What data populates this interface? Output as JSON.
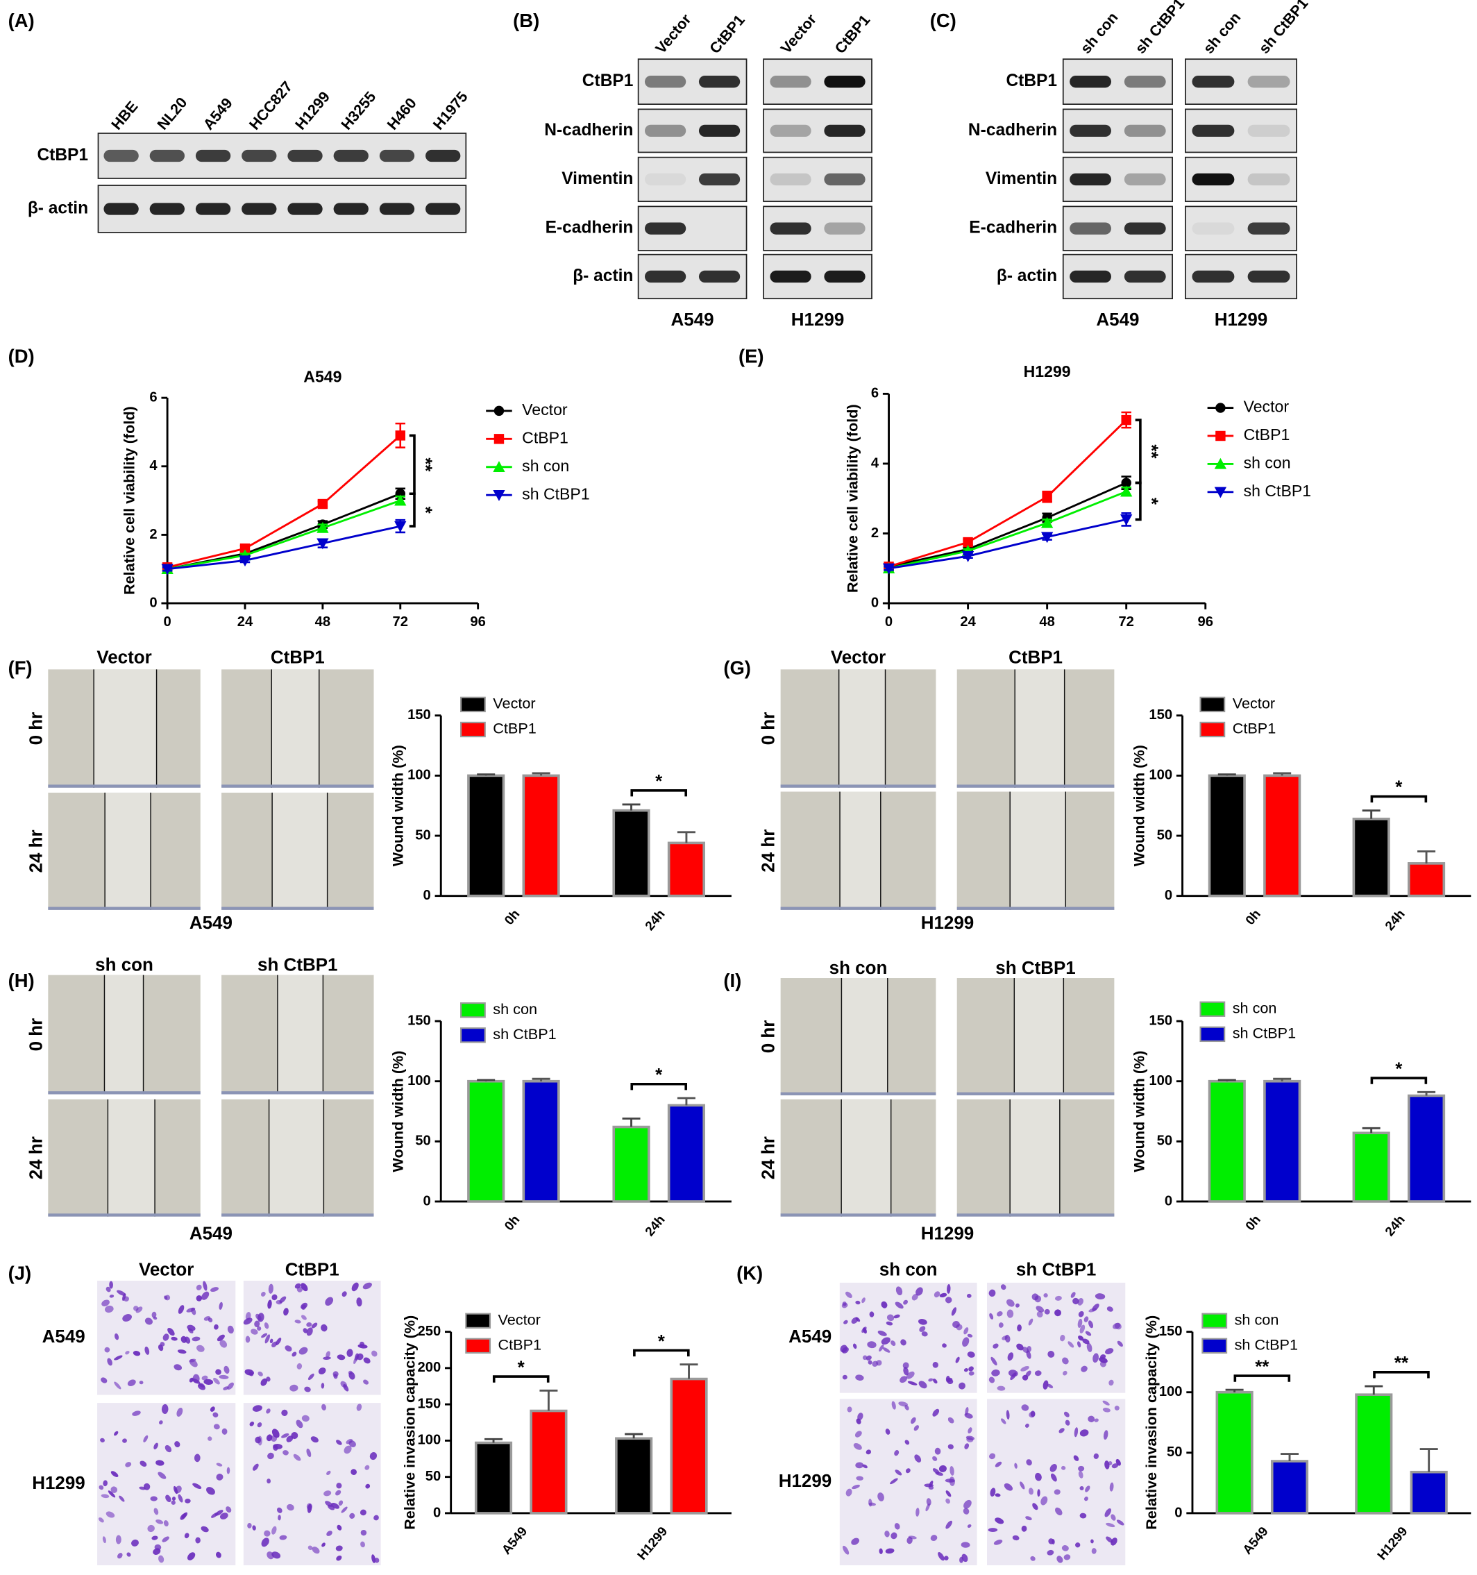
{
  "panel_labels": [
    "(A)",
    "(B)",
    "(C)",
    "(D)",
    "(E)",
    "(F)",
    "(G)",
    "(H)",
    "(I)",
    "(J)",
    "(K)"
  ],
  "blots": [
    {
      "lanes": [
        "HBE",
        "NL20",
        "A549",
        "HCC827",
        "H1299",
        "H3255",
        "H460",
        "H1975"
      ],
      "rows": [
        "CtBP1",
        "β- actin"
      ]
    },
    {
      "lanes": [
        "Vector",
        "CtBP1"
      ],
      "rows": [
        "CtBP1",
        "N-cadherin",
        "Vimentin",
        "E-cadherin",
        "β- actin"
      ],
      "cell_lines": [
        "A549",
        "H1299"
      ]
    },
    {
      "lanes": [
        "sh con",
        "sh CtBP1"
      ],
      "rows": [
        "CtBP1",
        "N-cadherin",
        "Vimentin",
        "E-cadherin",
        "β- actin"
      ],
      "cell_lines": [
        "A549",
        "H1299"
      ]
    }
  ],
  "micrographs": [
    {
      "columns": [
        "Vector",
        "CtBP1"
      ],
      "rows": [
        "0 hr",
        "24 hr"
      ],
      "cell_line": "A549"
    },
    {
      "columns": [
        "Vector",
        "CtBP1"
      ],
      "rows": [
        "0 hr",
        "24 hr"
      ],
      "cell_line": "H1299"
    },
    {
      "columns": [
        "sh con",
        "sh CtBP1"
      ],
      "rows": [
        "0 hr",
        "24 hr"
      ],
      "cell_line": "A549"
    },
    {
      "columns": [
        "sh con",
        "sh CtBP1"
      ],
      "rows": [
        "0 hr",
        "24 hr"
      ],
      "cell_line": "H1299"
    },
    {
      "columns": [
        "Vector",
        "CtBP1"
      ],
      "rows": [
        "A549",
        "H1299"
      ]
    },
    {
      "columns": [
        "sh con",
        "sh CtBP1"
      ],
      "rows": [
        "A549",
        "H1299"
      ]
    }
  ],
  "chart_data": [
    {
      "type": "line",
      "title": "A549",
      "ylabel": "Relative cell viability (fold)",
      "x": [
        0,
        24,
        48,
        72
      ],
      "xlim": [
        0,
        96
      ],
      "xticks": [
        0,
        24,
        48,
        72,
        96
      ],
      "ylim": [
        0,
        6
      ],
      "yticks": [
        0,
        2,
        4,
        6
      ],
      "series": [
        {
          "name": "Vector",
          "color": "#000000",
          "marker": "circle",
          "values": [
            1,
            1.45,
            2.3,
            3.2
          ],
          "errors": [
            0.05,
            0.05,
            0.1,
            0.15
          ]
        },
        {
          "name": "CtBP1",
          "color": "#ff0000",
          "marker": "square",
          "values": [
            1.05,
            1.6,
            2.9,
            4.9
          ],
          "errors": [
            0.05,
            0.08,
            0.08,
            0.35
          ]
        },
        {
          "name": "sh con",
          "color": "#00ee00",
          "marker": "triangle-up",
          "values": [
            1,
            1.4,
            2.2,
            3.0
          ],
          "errors": [
            0.05,
            0.05,
            0.1,
            0.12
          ]
        },
        {
          "name": "sh CtBP1",
          "color": "#0000cc",
          "marker": "triangle-down",
          "values": [
            1,
            1.25,
            1.75,
            2.25
          ],
          "errors": [
            0.05,
            0.05,
            0.12,
            0.18
          ]
        }
      ],
      "significance": [
        "**",
        "*"
      ]
    },
    {
      "type": "line",
      "title": "H1299",
      "ylabel": "Relative cell viability (fold)",
      "x": [
        0,
        24,
        48,
        72
      ],
      "xlim": [
        0,
        96
      ],
      "xticks": [
        0,
        24,
        48,
        72,
        96
      ],
      "ylim": [
        0,
        6
      ],
      "yticks": [
        0,
        2,
        4,
        6
      ],
      "series": [
        {
          "name": "Vector",
          "color": "#000000",
          "marker": "circle",
          "values": [
            1.05,
            1.55,
            2.45,
            3.45
          ],
          "errors": [
            0.05,
            0.05,
            0.12,
            0.18
          ]
        },
        {
          "name": "CtBP1",
          "color": "#ff0000",
          "marker": "square",
          "values": [
            1.05,
            1.75,
            3.05,
            5.25
          ],
          "errors": [
            0.05,
            0.08,
            0.15,
            0.22
          ]
        },
        {
          "name": "sh con",
          "color": "#00ee00",
          "marker": "triangle-up",
          "values": [
            1,
            1.5,
            2.3,
            3.2
          ],
          "errors": [
            0.05,
            0.05,
            0.1,
            0.12
          ]
        },
        {
          "name": "sh CtBP1",
          "color": "#0000cc",
          "marker": "triangle-down",
          "values": [
            1,
            1.35,
            1.9,
            2.4
          ],
          "errors": [
            0.05,
            0.05,
            0.08,
            0.18
          ]
        }
      ],
      "significance": [
        "**",
        "*"
      ]
    },
    {
      "type": "bar",
      "ylabel": "Wound width (%)",
      "categories": [
        "0h",
        "24h"
      ],
      "ylim": [
        0,
        150
      ],
      "yticks": [
        0,
        50,
        100,
        150
      ],
      "series": [
        {
          "name": "Vector",
          "color": "#000000",
          "values": [
            100,
            71
          ],
          "errors": [
            1,
            5
          ]
        },
        {
          "name": "CtBP1",
          "color": "#ff0000",
          "values": [
            100,
            44
          ],
          "errors": [
            2,
            9
          ]
        }
      ],
      "significance": [
        null,
        "*"
      ]
    },
    {
      "type": "bar",
      "ylabel": "Wound width (%)",
      "categories": [
        "0h",
        "24h"
      ],
      "ylim": [
        0,
        150
      ],
      "yticks": [
        0,
        50,
        100,
        150
      ],
      "series": [
        {
          "name": "Vector",
          "color": "#000000",
          "values": [
            100,
            64
          ],
          "errors": [
            1,
            7
          ]
        },
        {
          "name": "CtBP1",
          "color": "#ff0000",
          "values": [
            100,
            27
          ],
          "errors": [
            2,
            10
          ]
        }
      ],
      "significance": [
        null,
        "*"
      ]
    },
    {
      "type": "bar",
      "ylabel": "Wound width (%)",
      "categories": [
        "0h",
        "24h"
      ],
      "ylim": [
        0,
        150
      ],
      "yticks": [
        0,
        50,
        100,
        150
      ],
      "series": [
        {
          "name": "sh con",
          "color": "#00ee00",
          "values": [
            100,
            62
          ],
          "errors": [
            1,
            7
          ]
        },
        {
          "name": "sh CtBP1",
          "color": "#0000cc",
          "values": [
            100,
            80
          ],
          "errors": [
            2,
            6
          ]
        }
      ],
      "significance": [
        null,
        "*"
      ]
    },
    {
      "type": "bar",
      "ylabel": "Wound width (%)",
      "categories": [
        "0h",
        "24h"
      ],
      "ylim": [
        0,
        150
      ],
      "yticks": [
        0,
        50,
        100,
        150
      ],
      "series": [
        {
          "name": "sh con",
          "color": "#00ee00",
          "values": [
            100,
            57
          ],
          "errors": [
            1,
            4
          ]
        },
        {
          "name": "sh CtBP1",
          "color": "#0000cc",
          "values": [
            100,
            88
          ],
          "errors": [
            2,
            3
          ]
        }
      ],
      "significance": [
        null,
        "*"
      ]
    },
    {
      "type": "bar",
      "ylabel": "Relative invasion capacity (%)",
      "categories": [
        "A549",
        "H1299"
      ],
      "ylim": [
        0,
        250
      ],
      "yticks": [
        0,
        50,
        100,
        150,
        200,
        250
      ],
      "series": [
        {
          "name": "Vector",
          "color": "#000000",
          "values": [
            97,
            103
          ],
          "errors": [
            5,
            6
          ]
        },
        {
          "name": "CtBP1",
          "color": "#ff0000",
          "values": [
            141,
            185
          ],
          "errors": [
            28,
            20
          ]
        }
      ],
      "significance": [
        "*",
        "*"
      ]
    },
    {
      "type": "bar",
      "ylabel": "Relative invasion capacity (%)",
      "categories": [
        "A549",
        "H1299"
      ],
      "ylim": [
        0,
        150
      ],
      "yticks": [
        0,
        50,
        100,
        150
      ],
      "series": [
        {
          "name": "sh con",
          "color": "#00ee00",
          "values": [
            100,
            98
          ],
          "errors": [
            2,
            7
          ]
        },
        {
          "name": "sh CtBP1",
          "color": "#0000cc",
          "values": [
            43,
            34
          ],
          "errors": [
            6,
            19
          ]
        }
      ],
      "significance": [
        "**",
        "**"
      ]
    }
  ]
}
